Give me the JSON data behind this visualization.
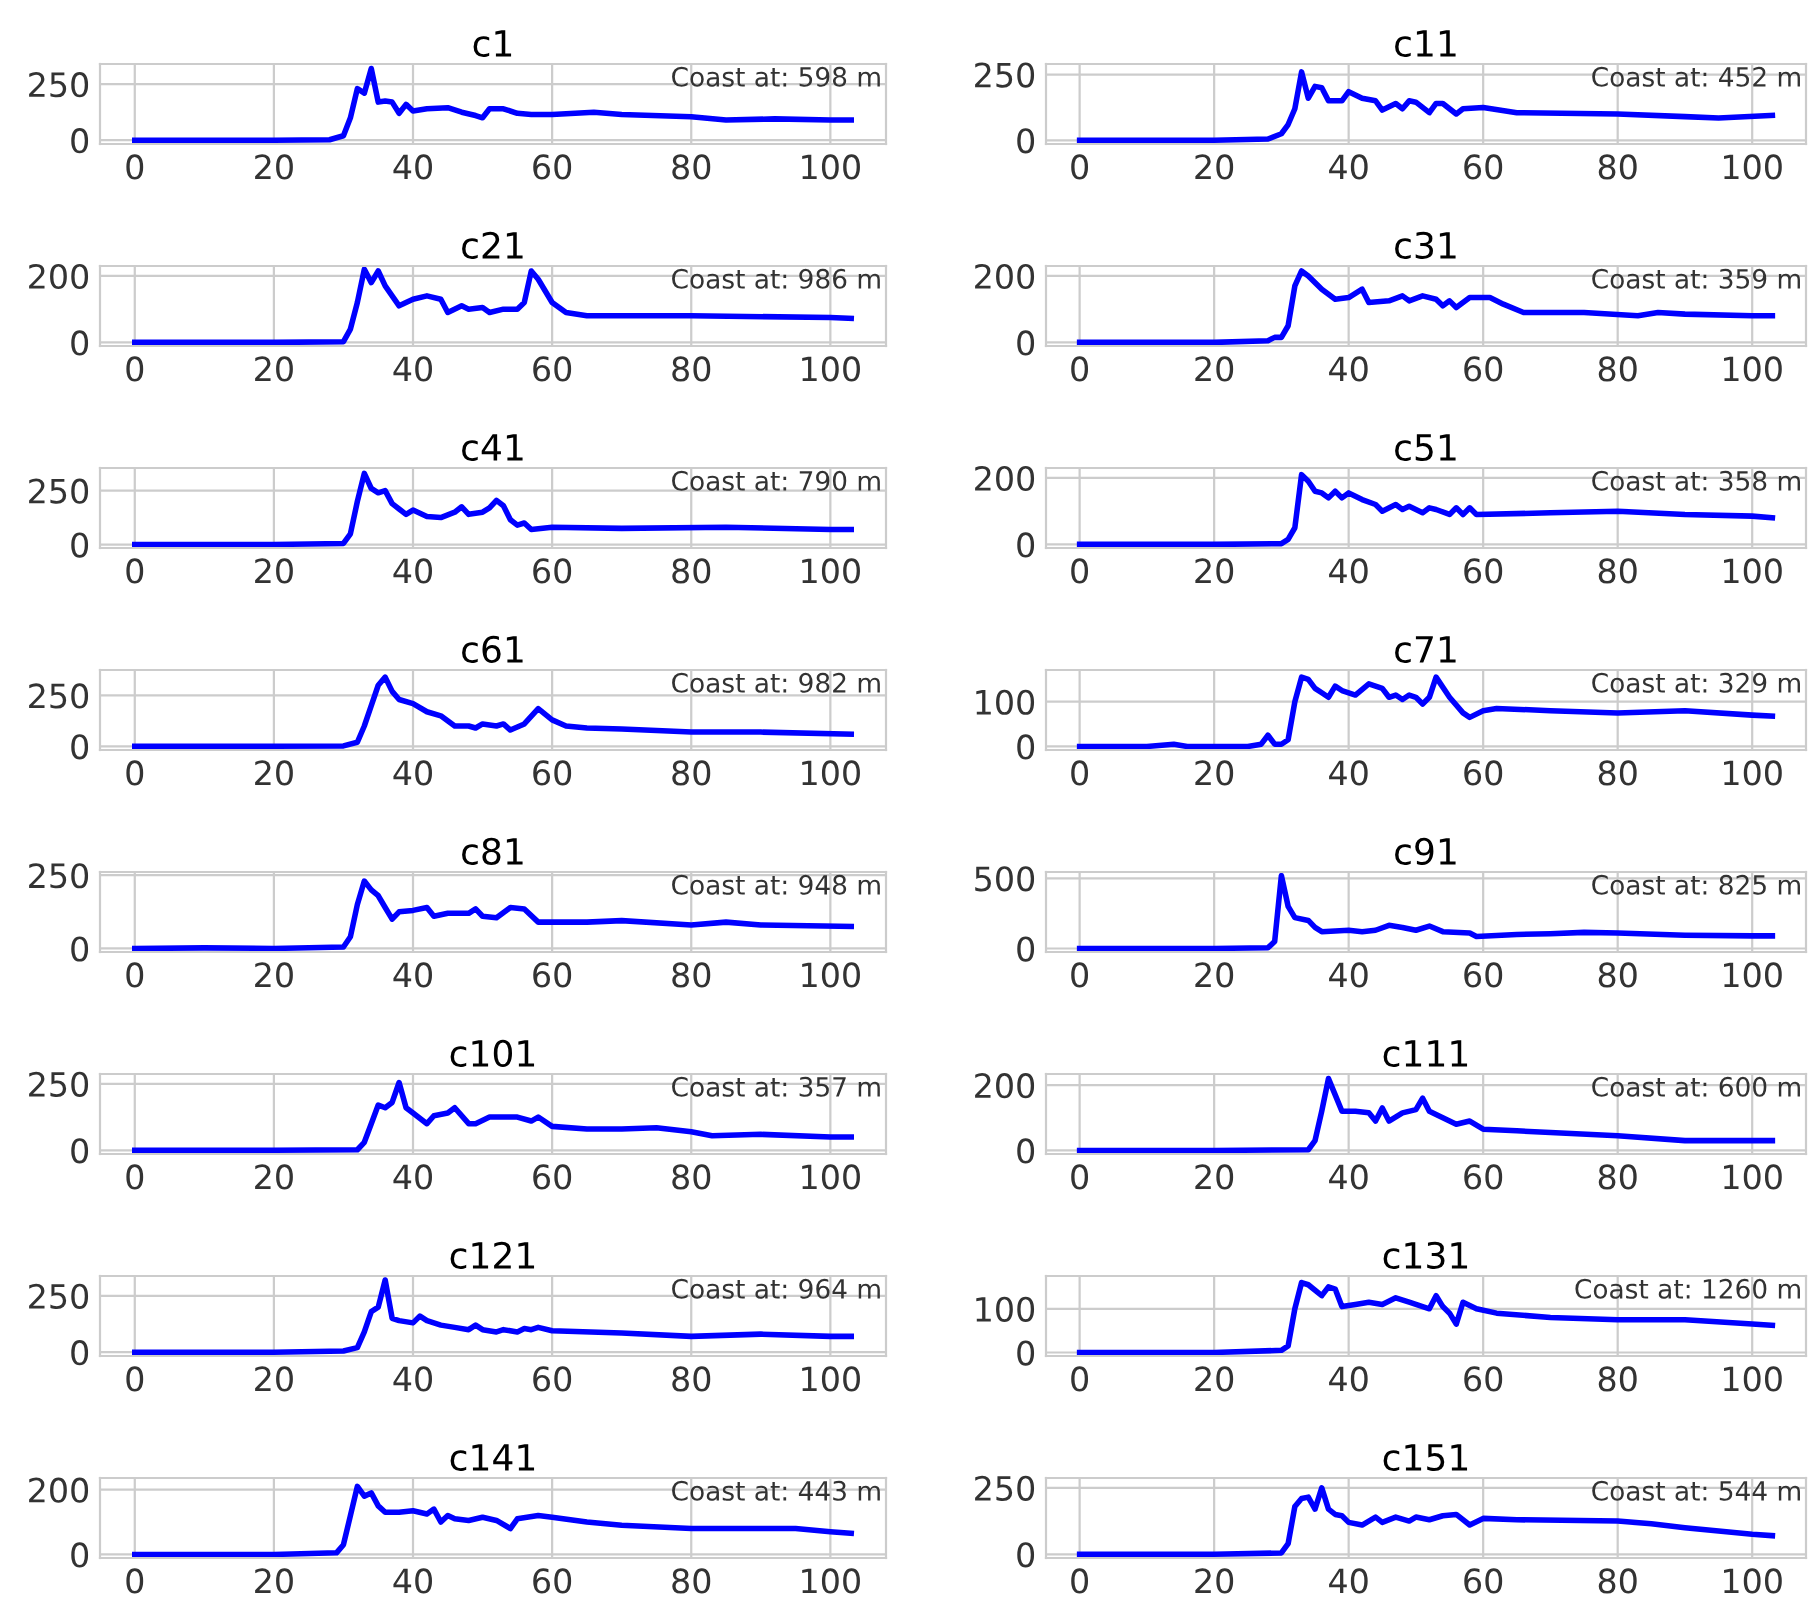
{
  "chart_data": [
    {
      "type": "line",
      "title": "c1",
      "color": "#0000ff",
      "grid": true,
      "xlim": [
        -5,
        108
      ],
      "xticks": [
        0,
        20,
        40,
        60,
        80,
        100
      ],
      "ylim": [
        -17,
        340
      ],
      "yticks": [
        0,
        250
      ],
      "annotations": [
        "Coast at: 598 m"
      ],
      "x": [
        0,
        10,
        20,
        28,
        30,
        31,
        32,
        33,
        34,
        35,
        36,
        37,
        38,
        39,
        40,
        42,
        45,
        47,
        49,
        50,
        51,
        53,
        55,
        57,
        60,
        66,
        70,
        80,
        85,
        92,
        100,
        103
      ],
      "values": [
        0,
        0,
        0,
        2,
        20,
        100,
        230,
        210,
        320,
        170,
        175,
        170,
        120,
        160,
        130,
        140,
        145,
        125,
        110,
        100,
        140,
        140,
        120,
        115,
        115,
        125,
        115,
        105,
        90,
        95,
        90,
        90
      ]
    },
    {
      "type": "line",
      "title": "c11",
      "color": "#0000ff",
      "grid": true,
      "xlim": [
        -5,
        108
      ],
      "xticks": [
        0,
        20,
        40,
        60,
        80,
        100
      ],
      "ylim": [
        -14,
        290
      ],
      "yticks": [
        0,
        250
      ],
      "annotations": [
        "Coast at: 452 m"
      ],
      "x": [
        0,
        20,
        28,
        30,
        31,
        32,
        33,
        34,
        35,
        36,
        37,
        39,
        40,
        42,
        44,
        45,
        47,
        48,
        49,
        50,
        52,
        53,
        54,
        56,
        57,
        60,
        65,
        80,
        90,
        95,
        103
      ],
      "values": [
        0,
        0,
        5,
        25,
        60,
        120,
        260,
        160,
        205,
        200,
        150,
        150,
        185,
        160,
        150,
        115,
        140,
        120,
        150,
        145,
        105,
        140,
        140,
        100,
        120,
        125,
        105,
        100,
        90,
        85,
        95
      ]
    },
    {
      "type": "line",
      "title": "c21",
      "color": "#0000ff",
      "grid": true,
      "xlim": [
        -5,
        108
      ],
      "xticks": [
        0,
        20,
        40,
        60,
        80,
        100
      ],
      "ylim": [
        -11,
        230
      ],
      "yticks": [
        0,
        200
      ],
      "annotations": [
        "Coast at: 986 m"
      ],
      "x": [
        0,
        20,
        30,
        31,
        32,
        33,
        34,
        35,
        36,
        37,
        38,
        40,
        42,
        44,
        45,
        47,
        48,
        50,
        51,
        53,
        55,
        56,
        57,
        58,
        60,
        62,
        65,
        80,
        100,
        103
      ],
      "values": [
        0,
        0,
        2,
        40,
        120,
        220,
        180,
        215,
        170,
        140,
        110,
        130,
        140,
        130,
        90,
        110,
        100,
        105,
        90,
        100,
        100,
        120,
        215,
        190,
        120,
        90,
        80,
        80,
        75,
        72
      ]
    },
    {
      "type": "line",
      "title": "c31",
      "color": "#0000ff",
      "grid": true,
      "xlim": [
        -5,
        108
      ],
      "xticks": [
        0,
        20,
        40,
        60,
        80,
        100
      ],
      "ylim": [
        -11,
        230
      ],
      "yticks": [
        0,
        200
      ],
      "annotations": [
        "Coast at: 359 m"
      ],
      "x": [
        0,
        20,
        28,
        29,
        30,
        31,
        32,
        33,
        34,
        36,
        38,
        40,
        42,
        43,
        46,
        48,
        49,
        51,
        53,
        54,
        55,
        56,
        58,
        61,
        63,
        66,
        75,
        83,
        86,
        90,
        100,
        103
      ],
      "values": [
        0,
        0,
        5,
        15,
        15,
        50,
        170,
        215,
        200,
        160,
        130,
        135,
        160,
        120,
        125,
        140,
        125,
        140,
        130,
        110,
        125,
        105,
        135,
        135,
        115,
        90,
        90,
        80,
        90,
        85,
        80,
        80
      ]
    },
    {
      "type": "line",
      "title": "c41",
      "color": "#0000ff",
      "grid": true,
      "xlim": [
        -5,
        108
      ],
      "xticks": [
        0,
        20,
        40,
        60,
        80,
        100
      ],
      "ylim": [
        -16,
        355
      ],
      "yticks": [
        0,
        250
      ],
      "annotations": [
        "Coast at: 790 m"
      ],
      "x": [
        0,
        20,
        30,
        31,
        32,
        33,
        34,
        35,
        36,
        37,
        38,
        39,
        40,
        42,
        44,
        46,
        47,
        48,
        50,
        51,
        52,
        53,
        54,
        55,
        56,
        57,
        60,
        70,
        85,
        100,
        103
      ],
      "values": [
        0,
        0,
        5,
        50,
        200,
        330,
        260,
        240,
        250,
        190,
        165,
        140,
        160,
        130,
        125,
        150,
        175,
        140,
        150,
        170,
        205,
        180,
        115,
        90,
        100,
        70,
        80,
        75,
        80,
        70,
        70
      ]
    },
    {
      "type": "line",
      "title": "c51",
      "color": "#0000ff",
      "grid": true,
      "xlim": [
        -5,
        108
      ],
      "xticks": [
        0,
        20,
        40,
        60,
        80,
        100
      ],
      "ylim": [
        -11,
        230
      ],
      "yticks": [
        0,
        200
      ],
      "annotations": [
        "Coast at: 358 m"
      ],
      "x": [
        0,
        20,
        30,
        31,
        32,
        33,
        34,
        35,
        36,
        37,
        38,
        39,
        40,
        42,
        44,
        45,
        47,
        48,
        49,
        51,
        52,
        53,
        55,
        56,
        57,
        58,
        59,
        70,
        80,
        90,
        100,
        103
      ],
      "values": [
        0,
        0,
        2,
        15,
        50,
        210,
        190,
        160,
        155,
        140,
        160,
        140,
        155,
        135,
        120,
        100,
        120,
        105,
        115,
        95,
        110,
        105,
        90,
        110,
        90,
        110,
        90,
        95,
        100,
        90,
        85,
        80
      ]
    },
    {
      "type": "line",
      "title": "c61",
      "color": "#0000ff",
      "grid": true,
      "xlim": [
        -5,
        108
      ],
      "xticks": [
        0,
        20,
        40,
        60,
        80,
        100
      ],
      "ylim": [
        -18,
        375
      ],
      "yticks": [
        0,
        250
      ],
      "annotations": [
        "Coast at: 982 m"
      ],
      "x": [
        0,
        20,
        30,
        32,
        33,
        34,
        35,
        36,
        37,
        38,
        40,
        42,
        44,
        46,
        48,
        49,
        50,
        52,
        53,
        54,
        56,
        58,
        60,
        62,
        65,
        70,
        80,
        90,
        103
      ],
      "values": [
        0,
        0,
        2,
        20,
        100,
        200,
        300,
        340,
        270,
        230,
        210,
        170,
        150,
        100,
        100,
        90,
        110,
        100,
        110,
        80,
        110,
        185,
        130,
        100,
        90,
        85,
        70,
        70,
        60
      ]
    },
    {
      "type": "line",
      "title": "c71",
      "color": "#0000ff",
      "grid": true,
      "xlim": [
        -5,
        108
      ],
      "xticks": [
        0,
        20,
        40,
        60,
        80,
        100
      ],
      "ylim": [
        -8,
        171
      ],
      "yticks": [
        0,
        100
      ],
      "annotations": [
        "Coast at: 329 m"
      ],
      "x": [
        0,
        10,
        14,
        16,
        25,
        27,
        28,
        29,
        30,
        31,
        32,
        33,
        34,
        35,
        36,
        37,
        38,
        39,
        41,
        43,
        45,
        46,
        47,
        48,
        49,
        50,
        51,
        52,
        53,
        55,
        57,
        58,
        60,
        62,
        70,
        80,
        90,
        100,
        103
      ],
      "values": [
        0,
        0,
        5,
        0,
        0,
        5,
        25,
        5,
        5,
        15,
        100,
        155,
        150,
        130,
        120,
        110,
        135,
        125,
        115,
        140,
        130,
        110,
        115,
        105,
        115,
        110,
        95,
        110,
        155,
        110,
        75,
        65,
        80,
        85,
        80,
        75,
        80,
        70,
        68
      ]
    },
    {
      "type": "line",
      "title": "c81",
      "color": "#0000ff",
      "grid": true,
      "xlim": [
        -5,
        108
      ],
      "xticks": [
        0,
        20,
        40,
        60,
        80,
        100
      ],
      "ylim": [
        -12,
        261
      ],
      "yticks": [
        0,
        250
      ],
      "annotations": [
        "Coast at: 948 m"
      ],
      "x": [
        0,
        10,
        20,
        30,
        31,
        32,
        33,
        34,
        35,
        36,
        37,
        38,
        40,
        42,
        43,
        45,
        48,
        49,
        50,
        52,
        54,
        56,
        58,
        65,
        70,
        80,
        85,
        90,
        103
      ],
      "values": [
        0,
        2,
        0,
        5,
        40,
        150,
        230,
        200,
        180,
        140,
        100,
        125,
        130,
        140,
        110,
        120,
        120,
        135,
        110,
        105,
        140,
        135,
        90,
        90,
        95,
        80,
        90,
        80,
        75
      ]
    },
    {
      "type": "line",
      "title": "c91",
      "color": "#0000ff",
      "grid": true,
      "xlim": [
        -5,
        108
      ],
      "xticks": [
        0,
        20,
        40,
        60,
        80,
        100
      ],
      "ylim": [
        -25,
        545
      ],
      "yticks": [
        0,
        500
      ],
      "annotations": [
        "Coast at: 825 m"
      ],
      "x": [
        0,
        20,
        28,
        29,
        30,
        31,
        32,
        34,
        35,
        36,
        40,
        42,
        44,
        46,
        48,
        50,
        52,
        54,
        58,
        59,
        65,
        70,
        75,
        80,
        90,
        100,
        103
      ],
      "values": [
        0,
        0,
        5,
        50,
        520,
        300,
        220,
        200,
        150,
        120,
        130,
        120,
        130,
        165,
        150,
        130,
        160,
        120,
        110,
        85,
        100,
        105,
        115,
        110,
        95,
        90,
        90
      ]
    },
    {
      "type": "line",
      "title": "c101",
      "color": "#0000ff",
      "grid": true,
      "xlim": [
        -5,
        108
      ],
      "xticks": [
        0,
        20,
        40,
        60,
        80,
        100
      ],
      "ylim": [
        -14,
        287
      ],
      "yticks": [
        0,
        250
      ],
      "annotations": [
        "Coast at: 357 m"
      ],
      "x": [
        0,
        20,
        32,
        33,
        34,
        35,
        36,
        37,
        38,
        39,
        40,
        42,
        43,
        45,
        46,
        48,
        49,
        51,
        55,
        57,
        58,
        60,
        65,
        70,
        75,
        80,
        83,
        90,
        100,
        103
      ],
      "values": [
        0,
        0,
        2,
        30,
        100,
        170,
        160,
        180,
        255,
        160,
        140,
        100,
        130,
        140,
        160,
        100,
        100,
        125,
        125,
        110,
        125,
        90,
        80,
        80,
        85,
        70,
        55,
        60,
        50,
        50
      ]
    },
    {
      "type": "line",
      "title": "c111",
      "color": "#0000ff",
      "grid": true,
      "xlim": [
        -5,
        108
      ],
      "xticks": [
        0,
        20,
        40,
        60,
        80,
        100
      ],
      "ylim": [
        -11,
        234
      ],
      "yticks": [
        0,
        200
      ],
      "annotations": [
        "Coast at: 600 m"
      ],
      "x": [
        0,
        20,
        34,
        35,
        36,
        37,
        38,
        39,
        41,
        43,
        44,
        45,
        46,
        48,
        50,
        51,
        52,
        54,
        56,
        58,
        60,
        65,
        70,
        80,
        90,
        103
      ],
      "values": [
        0,
        0,
        2,
        30,
        120,
        220,
        170,
        120,
        120,
        115,
        90,
        130,
        90,
        115,
        125,
        160,
        120,
        100,
        80,
        90,
        65,
        60,
        55,
        45,
        30,
        30
      ]
    },
    {
      "type": "line",
      "title": "c121",
      "color": "#0000ff",
      "grid": true,
      "xlim": [
        -5,
        108
      ],
      "xticks": [
        0,
        20,
        40,
        60,
        80,
        100
      ],
      "ylim": [
        -17,
        338
      ],
      "yticks": [
        0,
        250
      ],
      "annotations": [
        "Coast at: 964 m"
      ],
      "x": [
        0,
        20,
        30,
        32,
        33,
        34,
        35,
        36,
        37,
        38,
        40,
        41,
        42,
        44,
        46,
        48,
        49,
        50,
        52,
        53,
        55,
        56,
        57,
        58,
        60,
        70,
        80,
        90,
        100,
        103
      ],
      "values": [
        0,
        0,
        5,
        20,
        90,
        180,
        200,
        320,
        150,
        140,
        130,
        160,
        140,
        120,
        110,
        100,
        120,
        100,
        90,
        100,
        90,
        105,
        100,
        110,
        95,
        85,
        70,
        80,
        70,
        70
      ]
    },
    {
      "type": "line",
      "title": "c131",
      "color": "#0000ff",
      "grid": true,
      "xlim": [
        -5,
        108
      ],
      "xticks": [
        0,
        20,
        40,
        60,
        80,
        100
      ],
      "ylim": [
        -8,
        175
      ],
      "yticks": [
        0,
        100
      ],
      "annotations": [
        "Coast at: 1260 m"
      ],
      "x": [
        0,
        20,
        30,
        31,
        32,
        33,
        34,
        36,
        37,
        38,
        39,
        41,
        43,
        45,
        47,
        49,
        51,
        52,
        53,
        54,
        55,
        56,
        57,
        59,
        62,
        70,
        80,
        90,
        100,
        103
      ],
      "values": [
        0,
        0,
        5,
        15,
        100,
        160,
        155,
        130,
        150,
        145,
        105,
        110,
        115,
        110,
        125,
        115,
        105,
        100,
        130,
        105,
        90,
        65,
        115,
        100,
        90,
        80,
        75,
        75,
        65,
        62
      ]
    },
    {
      "type": "line",
      "title": "c141",
      "color": "#0000ff",
      "grid": true,
      "xlim": [
        -5,
        108
      ],
      "xticks": [
        0,
        20,
        40,
        60,
        80,
        100
      ],
      "ylim": [
        -11,
        236
      ],
      "yticks": [
        0,
        200
      ],
      "annotations": [
        "Coast at: 443 m"
      ],
      "x": [
        0,
        20,
        29,
        30,
        31,
        32,
        33,
        34,
        35,
        36,
        38,
        40,
        42,
        43,
        44,
        45,
        46,
        48,
        50,
        52,
        54,
        55,
        58,
        60,
        65,
        70,
        80,
        95,
        100,
        103
      ],
      "values": [
        0,
        0,
        5,
        30,
        120,
        210,
        180,
        190,
        150,
        130,
        130,
        135,
        125,
        140,
        100,
        120,
        110,
        105,
        115,
        105,
        80,
        110,
        120,
        115,
        100,
        90,
        80,
        80,
        70,
        65
      ]
    },
    {
      "type": "line",
      "title": "c151",
      "color": "#0000ff",
      "grid": true,
      "xlim": [
        -5,
        108
      ],
      "xticks": [
        0,
        20,
        40,
        60,
        80,
        100
      ],
      "ylim": [
        -14,
        287
      ],
      "yticks": [
        0,
        250
      ],
      "annotations": [
        "Coast at: 544 m"
      ],
      "x": [
        0,
        20,
        30,
        31,
        32,
        33,
        34,
        35,
        36,
        37,
        38,
        39,
        40,
        42,
        44,
        45,
        47,
        49,
        50,
        52,
        54,
        56,
        58,
        60,
        65,
        80,
        85,
        90,
        100,
        103
      ],
      "values": [
        0,
        0,
        5,
        40,
        180,
        210,
        215,
        170,
        250,
        170,
        150,
        145,
        120,
        110,
        140,
        120,
        140,
        125,
        140,
        130,
        145,
        150,
        110,
        135,
        130,
        125,
        115,
        100,
        75,
        70
      ]
    }
  ]
}
